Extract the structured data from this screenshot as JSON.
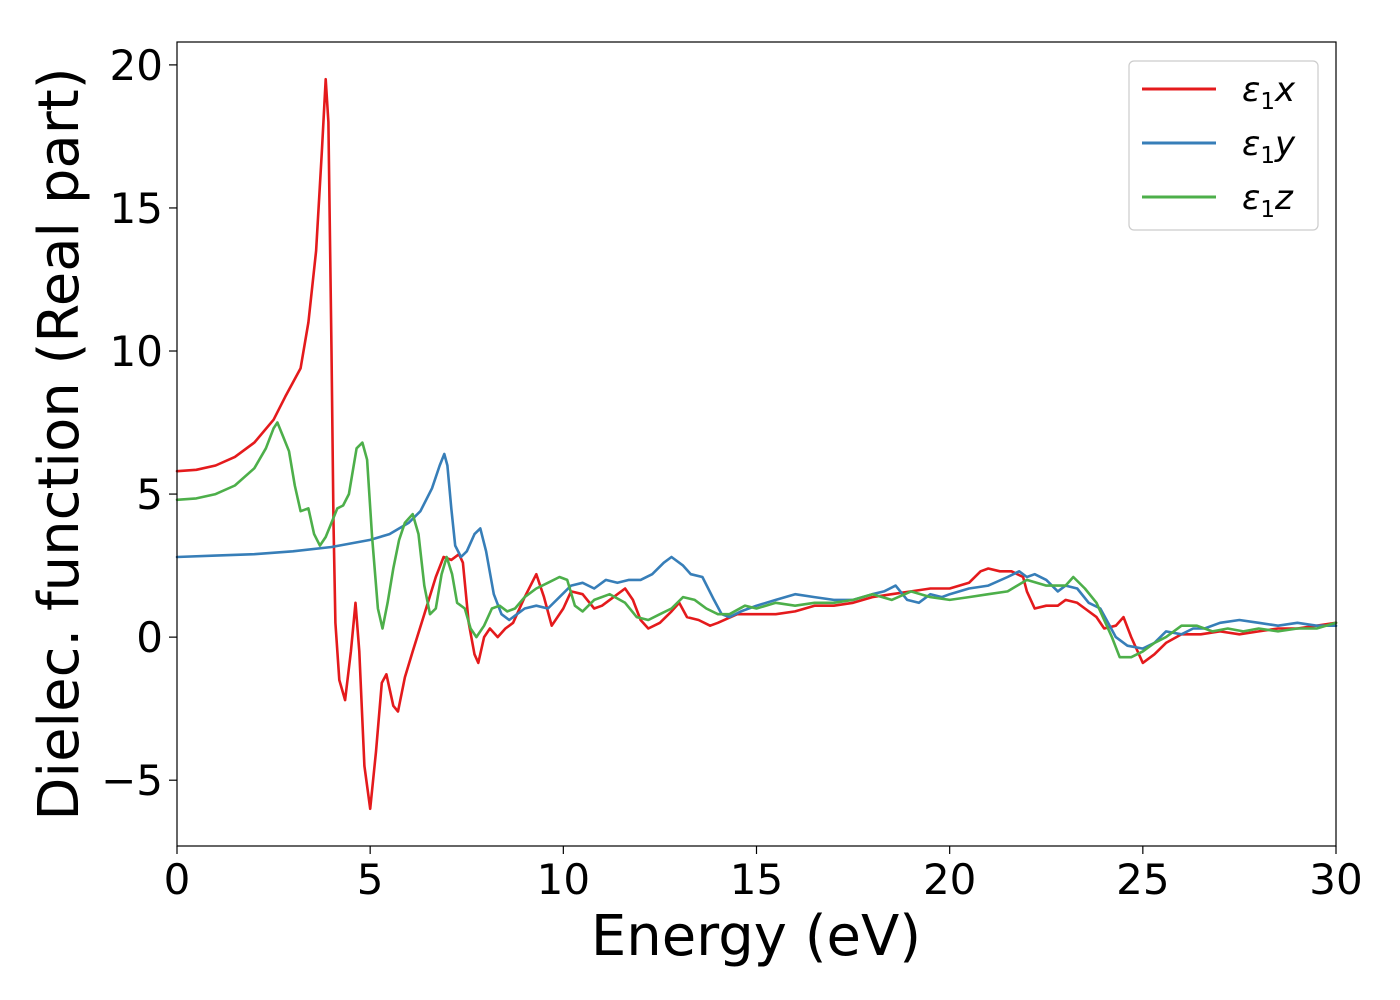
{
  "chart_data": {
    "type": "line",
    "xlabel": "Energy (eV)",
    "ylabel": "Dielec. function (Real part)",
    "xlim": [
      0,
      30
    ],
    "ylim": [
      -7.3,
      20.8
    ],
    "xticks": [
      0,
      5,
      10,
      15,
      20,
      25,
      30
    ],
    "xtick_labels": [
      "0",
      "5",
      "10",
      "15",
      "20",
      "25",
      "30"
    ],
    "yticks": [
      -5,
      0,
      5,
      10,
      15,
      20
    ],
    "ytick_labels": [
      "−5",
      "0",
      "5",
      "10",
      "15",
      "20"
    ],
    "grid": false,
    "legend_position": "top-right",
    "series": [
      {
        "name": "ε₁x",
        "legend": {
          "symbol": "ε",
          "sub": "1",
          "axis": "x"
        },
        "color": "#e41a1c",
        "points": [
          [
            0,
            5.8
          ],
          [
            0.5,
            5.85
          ],
          [
            1.0,
            6.0
          ],
          [
            1.5,
            6.3
          ],
          [
            2.0,
            6.8
          ],
          [
            2.5,
            7.6
          ],
          [
            2.8,
            8.4
          ],
          [
            3.0,
            8.9
          ],
          [
            3.2,
            9.4
          ],
          [
            3.4,
            11.0
          ],
          [
            3.6,
            13.5
          ],
          [
            3.75,
            17.0
          ],
          [
            3.85,
            19.5
          ],
          [
            3.92,
            18.0
          ],
          [
            4.0,
            10.0
          ],
          [
            4.05,
            4.0
          ],
          [
            4.1,
            0.5
          ],
          [
            4.2,
            -1.5
          ],
          [
            4.35,
            -2.2
          ],
          [
            4.5,
            -0.5
          ],
          [
            4.62,
            1.2
          ],
          [
            4.72,
            -0.5
          ],
          [
            4.85,
            -4.5
          ],
          [
            5.0,
            -6.0
          ],
          [
            5.15,
            -4.0
          ],
          [
            5.3,
            -1.6
          ],
          [
            5.42,
            -1.3
          ],
          [
            5.6,
            -2.4
          ],
          [
            5.72,
            -2.6
          ],
          [
            5.9,
            -1.4
          ],
          [
            6.1,
            -0.5
          ],
          [
            6.4,
            0.8
          ],
          [
            6.7,
            2.1
          ],
          [
            6.9,
            2.8
          ],
          [
            7.1,
            2.7
          ],
          [
            7.3,
            2.9
          ],
          [
            7.4,
            2.6
          ],
          [
            7.55,
            0.5
          ],
          [
            7.7,
            -0.6
          ],
          [
            7.8,
            -0.9
          ],
          [
            7.95,
            0.0
          ],
          [
            8.1,
            0.3
          ],
          [
            8.3,
            0.0
          ],
          [
            8.5,
            0.3
          ],
          [
            8.7,
            0.5
          ],
          [
            9.0,
            1.4
          ],
          [
            9.3,
            2.2
          ],
          [
            9.5,
            1.4
          ],
          [
            9.7,
            0.4
          ],
          [
            10.0,
            1.0
          ],
          [
            10.2,
            1.6
          ],
          [
            10.5,
            1.5
          ],
          [
            10.8,
            1.0
          ],
          [
            11.0,
            1.1
          ],
          [
            11.3,
            1.4
          ],
          [
            11.6,
            1.7
          ],
          [
            11.8,
            1.3
          ],
          [
            12.0,
            0.6
          ],
          [
            12.2,
            0.3
          ],
          [
            12.5,
            0.5
          ],
          [
            12.8,
            0.9
          ],
          [
            13.0,
            1.2
          ],
          [
            13.2,
            0.7
          ],
          [
            13.5,
            0.6
          ],
          [
            13.8,
            0.4
          ],
          [
            14.0,
            0.5
          ],
          [
            14.5,
            0.8
          ],
          [
            15.0,
            0.8
          ],
          [
            15.5,
            0.8
          ],
          [
            16.0,
            0.9
          ],
          [
            16.5,
            1.1
          ],
          [
            17.0,
            1.1
          ],
          [
            17.5,
            1.2
          ],
          [
            18.0,
            1.4
          ],
          [
            18.5,
            1.5
          ],
          [
            19.0,
            1.6
          ],
          [
            19.5,
            1.7
          ],
          [
            20.0,
            1.7
          ],
          [
            20.5,
            1.9
          ],
          [
            20.8,
            2.3
          ],
          [
            21.0,
            2.4
          ],
          [
            21.3,
            2.3
          ],
          [
            21.6,
            2.3
          ],
          [
            21.9,
            2.1
          ],
          [
            22.0,
            1.6
          ],
          [
            22.2,
            1.0
          ],
          [
            22.5,
            1.1
          ],
          [
            22.8,
            1.1
          ],
          [
            23.0,
            1.3
          ],
          [
            23.3,
            1.2
          ],
          [
            23.5,
            1.0
          ],
          [
            23.8,
            0.7
          ],
          [
            24.0,
            0.3
          ],
          [
            24.3,
            0.4
          ],
          [
            24.5,
            0.7
          ],
          [
            24.7,
            0.0
          ],
          [
            25.0,
            -0.9
          ],
          [
            25.3,
            -0.6
          ],
          [
            25.6,
            -0.2
          ],
          [
            26.0,
            0.1
          ],
          [
            26.5,
            0.1
          ],
          [
            27.0,
            0.2
          ],
          [
            27.5,
            0.1
          ],
          [
            28.0,
            0.2
          ],
          [
            28.5,
            0.3
          ],
          [
            29.0,
            0.3
          ],
          [
            29.5,
            0.4
          ],
          [
            30.0,
            0.5
          ]
        ]
      },
      {
        "name": "ε₁y",
        "legend": {
          "symbol": "ε",
          "sub": "1",
          "axis": "y"
        },
        "color": "#377eb8",
        "points": [
          [
            0,
            2.8
          ],
          [
            1.0,
            2.85
          ],
          [
            2.0,
            2.9
          ],
          [
            3.0,
            3.0
          ],
          [
            4.0,
            3.15
          ],
          [
            5.0,
            3.4
          ],
          [
            5.5,
            3.6
          ],
          [
            6.0,
            4.0
          ],
          [
            6.3,
            4.4
          ],
          [
            6.6,
            5.2
          ],
          [
            6.8,
            6.0
          ],
          [
            6.92,
            6.4
          ],
          [
            7.0,
            6.0
          ],
          [
            7.1,
            4.5
          ],
          [
            7.2,
            3.2
          ],
          [
            7.35,
            2.8
          ],
          [
            7.5,
            3.0
          ],
          [
            7.7,
            3.6
          ],
          [
            7.85,
            3.8
          ],
          [
            8.0,
            3.0
          ],
          [
            8.2,
            1.5
          ],
          [
            8.4,
            0.8
          ],
          [
            8.6,
            0.6
          ],
          [
            8.8,
            0.8
          ],
          [
            9.0,
            1.0
          ],
          [
            9.3,
            1.1
          ],
          [
            9.6,
            1.0
          ],
          [
            9.9,
            1.4
          ],
          [
            10.2,
            1.8
          ],
          [
            10.5,
            1.9
          ],
          [
            10.8,
            1.7
          ],
          [
            11.1,
            2.0
          ],
          [
            11.4,
            1.9
          ],
          [
            11.7,
            2.0
          ],
          [
            12.0,
            2.0
          ],
          [
            12.3,
            2.2
          ],
          [
            12.6,
            2.6
          ],
          [
            12.8,
            2.8
          ],
          [
            13.1,
            2.5
          ],
          [
            13.3,
            2.2
          ],
          [
            13.6,
            2.1
          ],
          [
            13.9,
            1.3
          ],
          [
            14.1,
            0.8
          ],
          [
            14.3,
            0.7
          ],
          [
            14.6,
            0.9
          ],
          [
            15.0,
            1.1
          ],
          [
            15.5,
            1.3
          ],
          [
            16.0,
            1.5
          ],
          [
            16.5,
            1.4
          ],
          [
            17.0,
            1.3
          ],
          [
            17.5,
            1.3
          ],
          [
            18.0,
            1.5
          ],
          [
            18.3,
            1.6
          ],
          [
            18.6,
            1.8
          ],
          [
            18.9,
            1.3
          ],
          [
            19.2,
            1.2
          ],
          [
            19.5,
            1.5
          ],
          [
            19.8,
            1.4
          ],
          [
            20.0,
            1.5
          ],
          [
            20.5,
            1.7
          ],
          [
            21.0,
            1.8
          ],
          [
            21.5,
            2.1
          ],
          [
            21.8,
            2.3
          ],
          [
            22.0,
            2.1
          ],
          [
            22.2,
            2.2
          ],
          [
            22.5,
            2.0
          ],
          [
            22.8,
            1.6
          ],
          [
            23.0,
            1.8
          ],
          [
            23.3,
            1.7
          ],
          [
            23.6,
            1.2
          ],
          [
            23.9,
            1.0
          ],
          [
            24.1,
            0.5
          ],
          [
            24.3,
            0.0
          ],
          [
            24.6,
            -0.3
          ],
          [
            25.0,
            -0.4
          ],
          [
            25.3,
            -0.2
          ],
          [
            25.6,
            0.2
          ],
          [
            26.0,
            0.1
          ],
          [
            26.3,
            0.3
          ],
          [
            26.6,
            0.3
          ],
          [
            27.0,
            0.5
          ],
          [
            27.5,
            0.6
          ],
          [
            28.0,
            0.5
          ],
          [
            28.5,
            0.4
          ],
          [
            29.0,
            0.5
          ],
          [
            29.5,
            0.4
          ],
          [
            30.0,
            0.4
          ]
        ]
      },
      {
        "name": "ε₁z",
        "legend": {
          "symbol": "ε",
          "sub": "1",
          "axis": "z"
        },
        "color": "#4daf4a",
        "points": [
          [
            0,
            4.8
          ],
          [
            0.5,
            4.85
          ],
          [
            1.0,
            5.0
          ],
          [
            1.5,
            5.3
          ],
          [
            2.0,
            5.9
          ],
          [
            2.3,
            6.6
          ],
          [
            2.5,
            7.3
          ],
          [
            2.6,
            7.5
          ],
          [
            2.75,
            7.0
          ],
          [
            2.9,
            6.5
          ],
          [
            3.05,
            5.3
          ],
          [
            3.2,
            4.4
          ],
          [
            3.4,
            4.5
          ],
          [
            3.55,
            3.6
          ],
          [
            3.7,
            3.2
          ],
          [
            3.85,
            3.5
          ],
          [
            4.0,
            4.0
          ],
          [
            4.15,
            4.5
          ],
          [
            4.3,
            4.6
          ],
          [
            4.45,
            5.0
          ],
          [
            4.65,
            6.6
          ],
          [
            4.8,
            6.8
          ],
          [
            4.92,
            6.2
          ],
          [
            5.05,
            3.5
          ],
          [
            5.2,
            1.0
          ],
          [
            5.32,
            0.3
          ],
          [
            5.45,
            1.2
          ],
          [
            5.6,
            2.4
          ],
          [
            5.75,
            3.4
          ],
          [
            5.9,
            4.0
          ],
          [
            6.1,
            4.3
          ],
          [
            6.25,
            3.6
          ],
          [
            6.4,
            1.8
          ],
          [
            6.55,
            0.8
          ],
          [
            6.7,
            1.0
          ],
          [
            6.85,
            2.2
          ],
          [
            6.98,
            2.8
          ],
          [
            7.12,
            2.2
          ],
          [
            7.25,
            1.2
          ],
          [
            7.45,
            1.0
          ],
          [
            7.6,
            0.3
          ],
          [
            7.75,
            0.0
          ],
          [
            7.95,
            0.4
          ],
          [
            8.15,
            1.0
          ],
          [
            8.35,
            1.1
          ],
          [
            8.55,
            0.9
          ],
          [
            8.75,
            1.0
          ],
          [
            9.0,
            1.4
          ],
          [
            9.3,
            1.7
          ],
          [
            9.6,
            1.9
          ],
          [
            9.9,
            2.1
          ],
          [
            10.1,
            2.0
          ],
          [
            10.3,
            1.1
          ],
          [
            10.5,
            0.9
          ],
          [
            10.8,
            1.3
          ],
          [
            11.2,
            1.5
          ],
          [
            11.6,
            1.2
          ],
          [
            11.9,
            0.7
          ],
          [
            12.2,
            0.6
          ],
          [
            12.5,
            0.8
          ],
          [
            12.8,
            1.0
          ],
          [
            13.1,
            1.4
          ],
          [
            13.4,
            1.3
          ],
          [
            13.7,
            1.0
          ],
          [
            14.0,
            0.8
          ],
          [
            14.3,
            0.8
          ],
          [
            14.7,
            1.1
          ],
          [
            15.0,
            1.0
          ],
          [
            15.5,
            1.2
          ],
          [
            16.0,
            1.1
          ],
          [
            16.5,
            1.2
          ],
          [
            17.0,
            1.2
          ],
          [
            17.5,
            1.3
          ],
          [
            18.0,
            1.5
          ],
          [
            18.5,
            1.3
          ],
          [
            19.0,
            1.6
          ],
          [
            19.5,
            1.4
          ],
          [
            20.0,
            1.3
          ],
          [
            20.5,
            1.4
          ],
          [
            21.0,
            1.5
          ],
          [
            21.5,
            1.6
          ],
          [
            22.0,
            2.0
          ],
          [
            22.5,
            1.8
          ],
          [
            23.0,
            1.8
          ],
          [
            23.2,
            2.1
          ],
          [
            23.5,
            1.7
          ],
          [
            23.8,
            1.2
          ],
          [
            24.0,
            0.6
          ],
          [
            24.2,
            0.0
          ],
          [
            24.4,
            -0.7
          ],
          [
            24.7,
            -0.7
          ],
          [
            25.0,
            -0.5
          ],
          [
            25.3,
            -0.2
          ],
          [
            25.6,
            0.0
          ],
          [
            26.0,
            0.4
          ],
          [
            26.4,
            0.4
          ],
          [
            26.8,
            0.2
          ],
          [
            27.2,
            0.3
          ],
          [
            27.6,
            0.2
          ],
          [
            28.0,
            0.3
          ],
          [
            28.5,
            0.2
          ],
          [
            29.0,
            0.3
          ],
          [
            29.5,
            0.3
          ],
          [
            30.0,
            0.5
          ]
        ]
      }
    ]
  }
}
